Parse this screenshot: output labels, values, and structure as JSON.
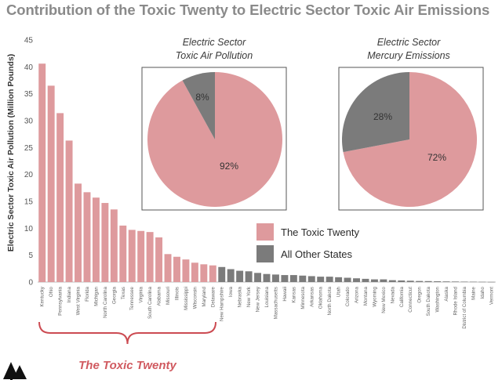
{
  "title": "Contribution of the Toxic Twenty to Electric Sector Toxic Air Emissions",
  "colors": {
    "toxic": "#de9a9d",
    "other": "#7b7b7b",
    "bracket": "#cc4b52",
    "grid": "#d9d9d9"
  },
  "legend": [
    {
      "label": "The Toxic Twenty",
      "color": "#de9a9d"
    },
    {
      "label": "All Other States",
      "color": "#7b7b7b"
    }
  ],
  "group_label": "The Toxic Twenty",
  "chart_data": [
    {
      "type": "bar",
      "ylabel": "Electric Sector Toxic Air Pollution (Million Pounds)",
      "ylim": [
        0,
        45
      ],
      "yticks": [
        0,
        5,
        10,
        15,
        20,
        25,
        30,
        35,
        40,
        45
      ],
      "grid": false,
      "categories": [
        "Kentucky",
        "Ohio",
        "Pennsylvania",
        "Indiana",
        "West Virginia",
        "Florida",
        "Michigan",
        "North Carolina",
        "Georgia",
        "Texas",
        "Tennessee",
        "Virginia",
        "South Carolina",
        "Alabama",
        "Missouri",
        "Illinois",
        "Mississippi",
        "Wisconsin",
        "Maryland",
        "Delaware",
        "New Hampshire",
        "Iowa",
        "Nebraska",
        "New York",
        "New Jersey",
        "Louisiana",
        "Massachusetts",
        "Hawaii",
        "Kansas",
        "Minnesota",
        "Arkansas",
        "Oklahoma",
        "North Dakota",
        "Utah",
        "Colorado",
        "Arizona",
        "Montana",
        "Wyoming",
        "New Mexico",
        "Nevada",
        "California",
        "Connecticut",
        "Oregon",
        "South Dakota",
        "Washington",
        "Alaska",
        "Rhode Island",
        "District of Columbia",
        "Maine",
        "Idaho",
        "Vermont"
      ],
      "values": [
        40.6,
        36.5,
        31.4,
        26.3,
        18.3,
        16.7,
        15.7,
        14.7,
        13.5,
        10.5,
        9.7,
        9.5,
        9.3,
        8.3,
        5.2,
        4.7,
        4.2,
        3.6,
        3.3,
        3.1,
        2.8,
        2.4,
        2.1,
        2.0,
        1.7,
        1.5,
        1.4,
        1.3,
        1.3,
        1.2,
        1.1,
        1.0,
        1.0,
        0.9,
        0.8,
        0.7,
        0.6,
        0.5,
        0.5,
        0.35,
        0.3,
        0.25,
        0.2,
        0.18,
        0.15,
        0.12,
        0.1,
        0.08,
        0.07,
        0.05,
        0.03
      ],
      "toxic_count": 20
    },
    {
      "type": "pie",
      "title_lines": [
        "Electric Sector",
        "Toxic Air Pollution"
      ],
      "slices": [
        {
          "label": "The Toxic Twenty",
          "value": 92,
          "text": "92%"
        },
        {
          "label": "All Other States",
          "value": 8,
          "text": "8%"
        }
      ]
    },
    {
      "type": "pie",
      "title_lines": [
        "Electric Sector",
        "Mercury Emissions"
      ],
      "slices": [
        {
          "label": "The Toxic Twenty",
          "value": 72,
          "text": "72%"
        },
        {
          "label": "All Other States",
          "value": 28,
          "text": "28%"
        }
      ]
    }
  ]
}
